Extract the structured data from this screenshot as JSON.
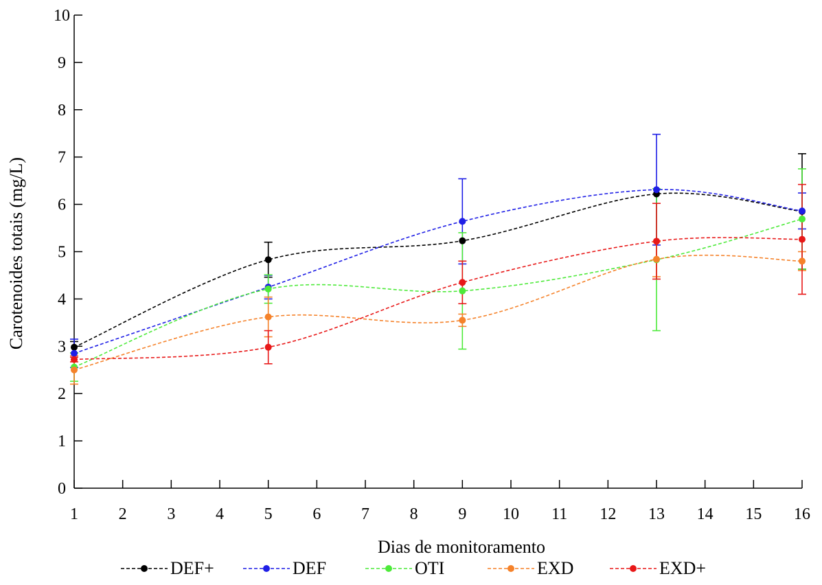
{
  "chart_data": {
    "type": "line",
    "title": "",
    "xlabel": "Dias de monitoramento",
    "ylabel": "Carotenoides totais (mg/L)",
    "xlim": [
      1,
      16
    ],
    "ylim": [
      0,
      10
    ],
    "xticks": [
      1,
      2,
      3,
      4,
      5,
      6,
      7,
      8,
      9,
      10,
      11,
      12,
      13,
      14,
      15,
      16
    ],
    "yticks": [
      0,
      1,
      2,
      3,
      4,
      5,
      6,
      7,
      8,
      9,
      10
    ],
    "grid": false,
    "legend_position": "bottom",
    "x": [
      1,
      5,
      9,
      13,
      16
    ],
    "series": [
      {
        "name": "DEF+",
        "color": "#000000",
        "values": [
          2.98,
          4.83,
          5.23,
          6.22,
          5.85
        ],
        "error": [
          0.12,
          0.37,
          0.0,
          0.0,
          1.22
        ]
      },
      {
        "name": "DEF",
        "color": "#1f1fe6",
        "values": [
          2.85,
          4.25,
          5.64,
          6.31,
          5.86
        ],
        "error": [
          0.3,
          0.25,
          0.9,
          1.17,
          0.38
        ]
      },
      {
        "name": "OTI",
        "color": "#4dea3a",
        "values": [
          2.56,
          4.21,
          4.17,
          4.83,
          5.69
        ],
        "error": [
          0.3,
          0.3,
          1.23,
          1.5,
          1.06
        ]
      },
      {
        "name": "EXD",
        "color": "#f5822a",
        "values": [
          2.5,
          3.62,
          3.55,
          4.84,
          4.8
        ],
        "error": [
          0.3,
          0.42,
          0.13,
          0.37,
          0.2
        ]
      },
      {
        "name": "EXD+",
        "color": "#e81818",
        "values": [
          2.72,
          2.98,
          4.35,
          5.22,
          5.26
        ],
        "error": [
          0.05,
          0.35,
          0.45,
          0.8,
          1.16
        ]
      }
    ]
  }
}
